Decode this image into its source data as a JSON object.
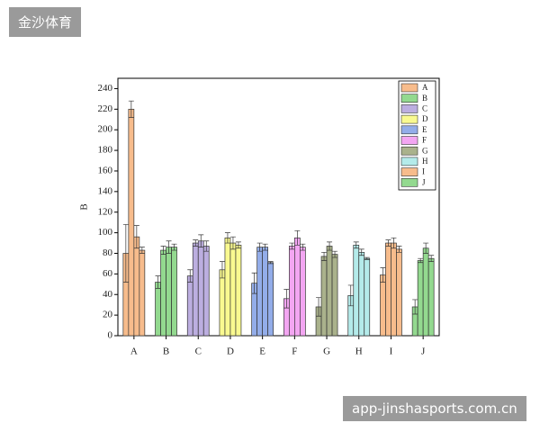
{
  "chart_data": {
    "type": "bar",
    "y_label": "B",
    "categories": [
      "A",
      "B",
      "C",
      "D",
      "E",
      "F",
      "G",
      "H",
      "I",
      "J"
    ],
    "colors": [
      "#f7bc8c",
      "#93d98f",
      "#bcaee0",
      "#f9f990",
      "#93ade9",
      "#f3a6f2",
      "#aab28c",
      "#b4ebea",
      "#f7bc8c",
      "#93d98f"
    ],
    "series": [
      {
        "values": [
          80,
          52,
          58,
          64,
          51,
          36,
          28,
          39,
          59,
          28
        ],
        "errors": [
          28,
          6,
          6,
          8,
          10,
          9,
          9,
          10,
          7,
          7
        ]
      },
      {
        "values": [
          220,
          83,
          90,
          95,
          86,
          87,
          77,
          88,
          90,
          73
        ],
        "errors": [
          8,
          4,
          3,
          5,
          4,
          3,
          4,
          3,
          3,
          2
        ]
      },
      {
        "values": [
          96,
          86,
          92,
          90,
          86,
          95,
          87,
          81,
          90,
          85
        ],
        "errors": [
          11,
          6,
          6,
          6,
          3,
          7,
          4,
          3,
          5,
          5
        ]
      },
      {
        "values": [
          83,
          86,
          87,
          88,
          71,
          86,
          79,
          75,
          84,
          75
        ],
        "errors": [
          3,
          3,
          5,
          3,
          1,
          3,
          3,
          1,
          3,
          3
        ]
      }
    ],
    "ylim": [
      0,
      250
    ],
    "yticks": [
      0,
      20,
      40,
      60,
      80,
      100,
      120,
      140,
      160,
      180,
      200,
      220,
      240
    ]
  },
  "watermark": "金沙体育",
  "footer": "app-jinshasports.com.cn"
}
